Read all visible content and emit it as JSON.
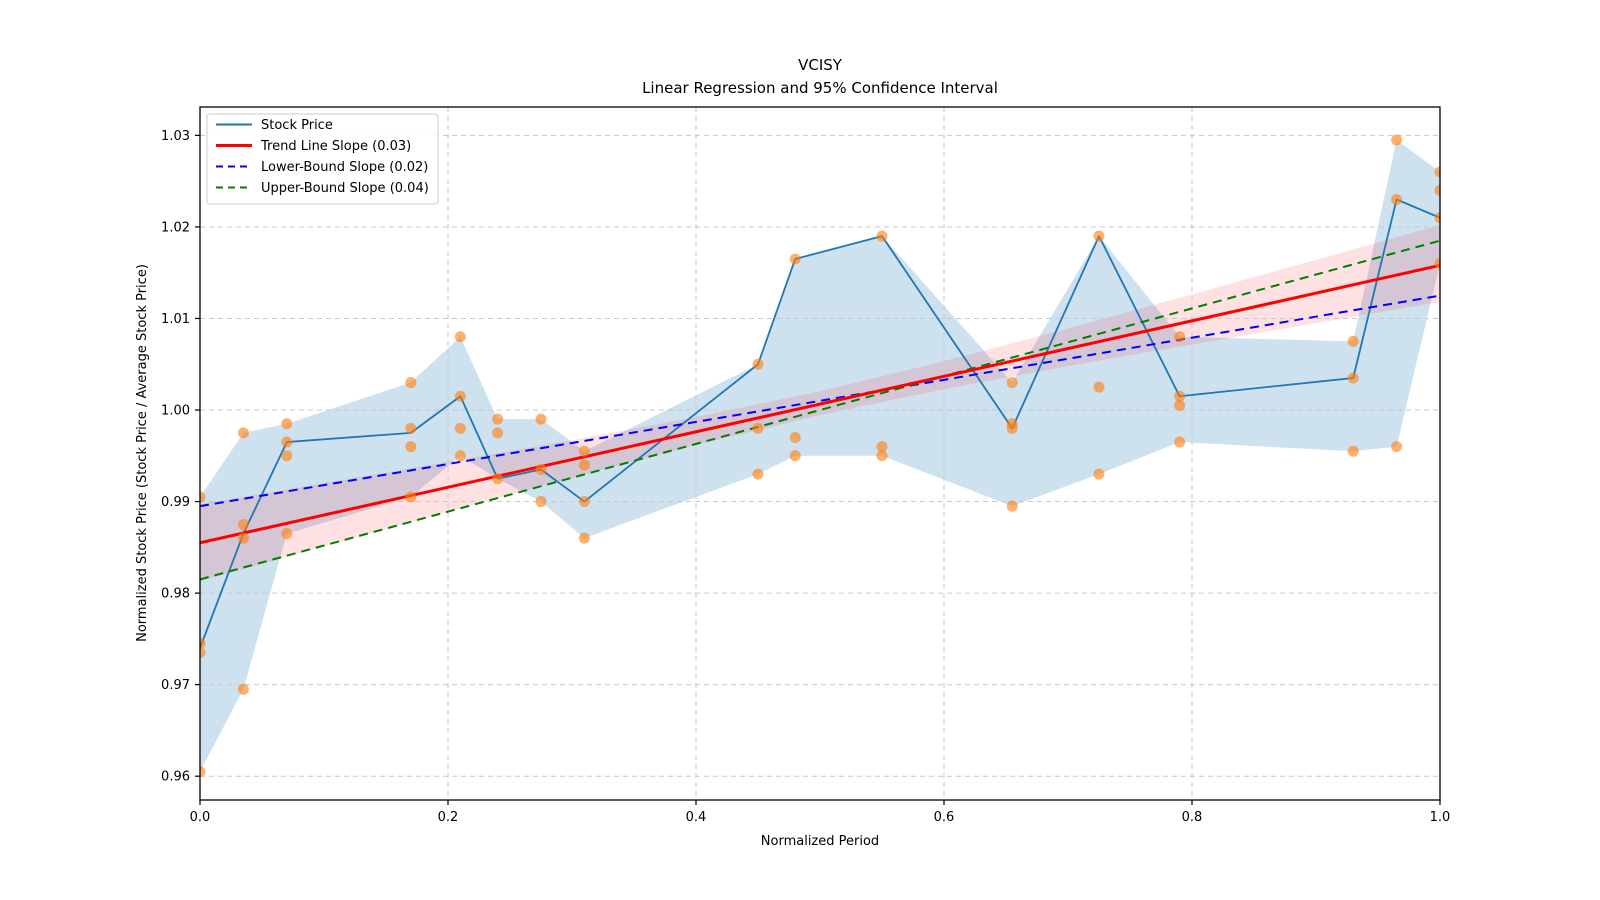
{
  "chart_data": {
    "type": "line",
    "title": "VCISY",
    "subtitle": "Linear Regression and 95% Confidence Interval",
    "xlabel": "Normalized Period",
    "ylabel": "Normalized Stock Price (Stock Price / Average Stock Price)",
    "xlim": [
      0.0,
      1.0
    ],
    "ylim": [
      0.9574,
      1.0331
    ],
    "xticks": [
      0.0,
      0.2,
      0.4,
      0.6,
      0.8,
      1.0
    ],
    "xtick_labels": [
      "0.0",
      "0.2",
      "0.4",
      "0.6",
      "0.8",
      "1.0"
    ],
    "yticks": [
      0.96,
      0.97,
      0.98,
      0.99,
      1.0,
      1.01,
      1.02,
      1.03
    ],
    "ytick_labels": [
      "0.96",
      "0.97",
      "0.98",
      "0.99",
      "1.00",
      "1.01",
      "1.02",
      "1.03"
    ],
    "grid": true,
    "legend": {
      "position": "upper left",
      "entries": [
        {
          "label": "Stock Price",
          "color": "#1f77b4",
          "dash": false,
          "width": 2
        },
        {
          "label": "Trend Line Slope (0.03)",
          "color": "#ff0000",
          "dash": false,
          "width": 3
        },
        {
          "label": "Lower-Bound Slope (0.02)",
          "color": "#0000ff",
          "dash": true,
          "width": 2
        },
        {
          "label": "Upper-Bound Slope (0.04)",
          "color": "#008000",
          "dash": true,
          "width": 2
        }
      ]
    },
    "colors": {
      "stock_line": "#1f77b4",
      "scatter": "#ff7f0e",
      "trend": "#ff0000",
      "lower_bound": "#0000ff",
      "upper_bound": "#008000",
      "stock_band": "rgba(31,119,180,0.22)",
      "ci_band": "rgba(255,20,40,0.13)",
      "grid": "#c9c9c9",
      "spine": "#000000"
    },
    "series": {
      "stock_price": {
        "x": [
          0.0,
          0.035,
          0.07,
          0.17,
          0.21,
          0.24,
          0.275,
          0.31,
          0.45,
          0.48,
          0.55,
          0.655,
          0.725,
          0.79,
          0.93,
          0.965,
          1.0
        ],
        "y": [
          0.974,
          0.9865,
          0.9965,
          0.9975,
          1.0015,
          0.9925,
          0.9935,
          0.99,
          1.005,
          1.0165,
          1.019,
          0.998,
          1.019,
          1.0015,
          1.0035,
          1.023,
          1.021
        ]
      },
      "stock_band": {
        "x": [
          0.0,
          0.035,
          0.07,
          0.17,
          0.21,
          0.24,
          0.275,
          0.31,
          0.45,
          0.48,
          0.55,
          0.655,
          0.725,
          0.79,
          0.93,
          0.965,
          1.0
        ],
        "lo": [
          0.9605,
          0.9695,
          0.9865,
          0.9905,
          0.995,
          0.9925,
          0.99,
          0.986,
          0.993,
          0.995,
          0.995,
          0.9895,
          0.993,
          0.9965,
          0.9955,
          0.996,
          1.016
        ],
        "hi": [
          0.9905,
          0.9975,
          0.9985,
          1.003,
          1.008,
          0.999,
          0.999,
          0.9955,
          1.005,
          1.0165,
          1.019,
          1.003,
          1.019,
          1.008,
          1.0075,
          1.0295,
          1.026
        ]
      },
      "scatter": {
        "points": [
          [
            0.0,
            0.9605
          ],
          [
            0.0,
            0.9735
          ],
          [
            0.0,
            0.9745
          ],
          [
            0.0,
            0.9905
          ],
          [
            0.035,
            0.9695
          ],
          [
            0.035,
            0.986
          ],
          [
            0.035,
            0.9875
          ],
          [
            0.035,
            0.9975
          ],
          [
            0.07,
            0.9865
          ],
          [
            0.07,
            0.995
          ],
          [
            0.07,
            0.9965
          ],
          [
            0.07,
            0.9985
          ],
          [
            0.17,
            0.9905
          ],
          [
            0.17,
            0.996
          ],
          [
            0.17,
            0.998
          ],
          [
            0.17,
            1.003
          ],
          [
            0.21,
            0.995
          ],
          [
            0.21,
            0.998
          ],
          [
            0.21,
            1.0015
          ],
          [
            0.21,
            1.008
          ],
          [
            0.24,
            0.9925
          ],
          [
            0.24,
            0.9975
          ],
          [
            0.24,
            0.999
          ],
          [
            0.275,
            0.99
          ],
          [
            0.275,
            0.9935
          ],
          [
            0.275,
            0.999
          ],
          [
            0.31,
            0.986
          ],
          [
            0.31,
            0.99
          ],
          [
            0.31,
            0.994
          ],
          [
            0.31,
            0.9955
          ],
          [
            0.45,
            0.993
          ],
          [
            0.45,
            0.998
          ],
          [
            0.45,
            1.005
          ],
          [
            0.48,
            0.995
          ],
          [
            0.48,
            0.997
          ],
          [
            0.48,
            1.0165
          ],
          [
            0.55,
            0.995
          ],
          [
            0.55,
            0.996
          ],
          [
            0.55,
            1.019
          ],
          [
            0.655,
            0.9895
          ],
          [
            0.655,
            0.998
          ],
          [
            0.655,
            0.9985
          ],
          [
            0.655,
            1.003
          ],
          [
            0.725,
            0.993
          ],
          [
            0.725,
            1.0025
          ],
          [
            0.725,
            1.019
          ],
          [
            0.79,
            0.9965
          ],
          [
            0.79,
            1.0005
          ],
          [
            0.79,
            1.0015
          ],
          [
            0.79,
            1.008
          ],
          [
            0.93,
            0.9955
          ],
          [
            0.93,
            1.0035
          ],
          [
            0.93,
            1.0075
          ],
          [
            0.965,
            0.996
          ],
          [
            0.965,
            1.023
          ],
          [
            0.965,
            1.0295
          ],
          [
            1.0,
            1.016
          ],
          [
            1.0,
            1.021
          ],
          [
            1.0,
            1.024
          ],
          [
            1.0,
            1.026
          ]
        ]
      },
      "ci_band": {
        "x": [
          0.0,
          0.1,
          0.2,
          0.3,
          0.4,
          0.5,
          0.6,
          0.7,
          0.8,
          0.9,
          1.0
        ],
        "lo": [
          0.9813,
          0.9851,
          0.98887,
          0.99259,
          0.99617,
          0.99945,
          1.00227,
          1.00479,
          1.00717,
          1.0095,
          1.0118
        ],
        "hi": [
          0.9897,
          0.992,
          0.99433,
          0.99671,
          0.99923,
          1.00205,
          1.00533,
          1.00891,
          1.01263,
          1.0164,
          1.0202
        ]
      },
      "trend": {
        "slope_label": "0.03",
        "x": [
          0.0,
          1.0
        ],
        "y": [
          0.9855,
          1.0158
        ]
      },
      "lower_bound": {
        "slope_label": "0.02",
        "x": [
          0.0,
          1.0
        ],
        "y": [
          0.9895,
          1.0125
        ]
      },
      "upper_bound": {
        "slope_label": "0.04",
        "x": [
          0.0,
          1.0
        ],
        "y": [
          0.9815,
          1.0185
        ]
      }
    }
  }
}
